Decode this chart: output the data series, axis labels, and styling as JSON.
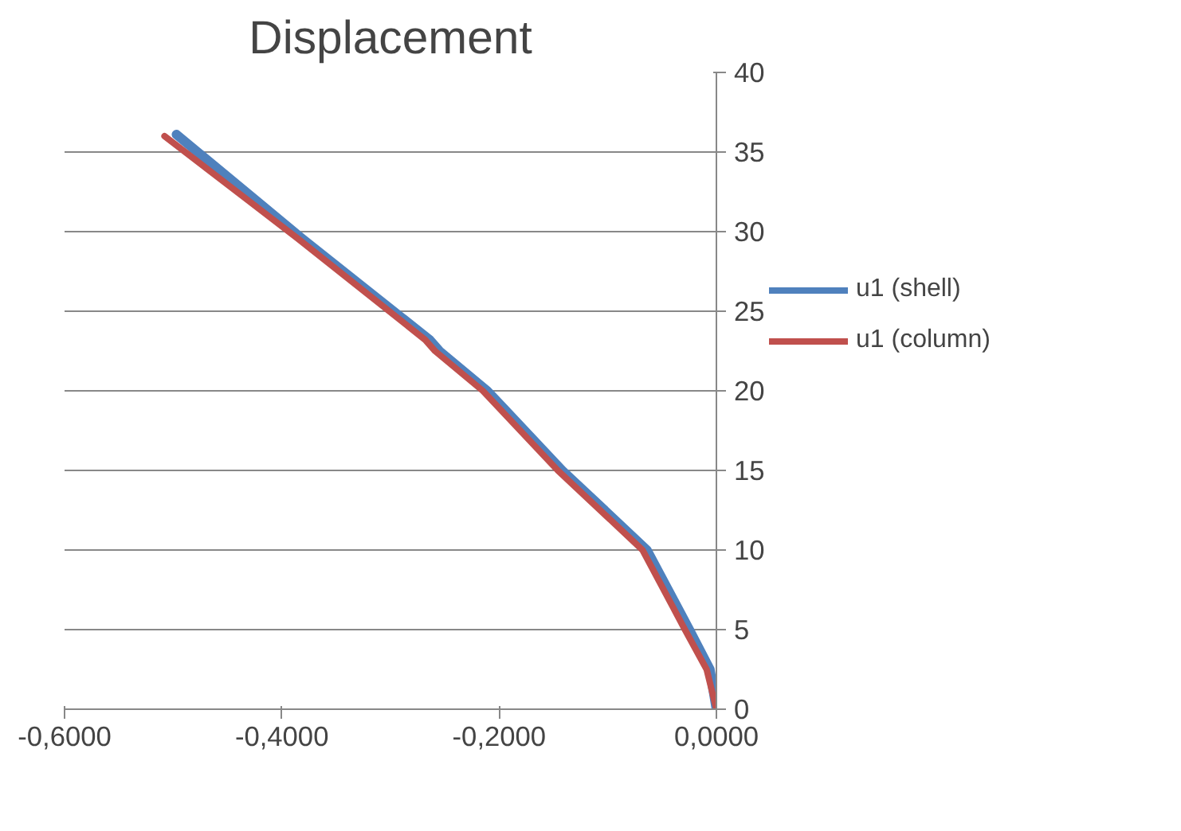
{
  "chart_data": {
    "type": "line",
    "title": "Displacement",
    "series": [
      {
        "name": "u1 (shell)",
        "color": "#4f81bd",
        "x": [
          -0.497,
          -0.382,
          -0.264,
          -0.255,
          -0.211,
          -0.142,
          -0.064,
          -0.025,
          -0.006,
          0.0
        ],
        "values": [
          36.1,
          29.6,
          23.2,
          22.5,
          20,
          15,
          10,
          5,
          2.5,
          0
        ]
      },
      {
        "name": "u1 (column)",
        "color": "#c0504d",
        "x": [
          -0.508,
          -0.386,
          -0.268,
          -0.259,
          -0.215,
          -0.146,
          -0.068,
          -0.029,
          -0.009,
          0.0
        ],
        "values": [
          36.0,
          29.6,
          23.2,
          22.5,
          20,
          15,
          10,
          5,
          2.5,
          0
        ]
      }
    ],
    "xlim": [
      -0.6,
      0.0
    ],
    "ylim": [
      0,
      40
    ],
    "xticks": [
      {
        "value": -0.6,
        "label": "-0,6000"
      },
      {
        "value": -0.4,
        "label": "-0,4000"
      },
      {
        "value": -0.2,
        "label": "-0,2000"
      },
      {
        "value": 0.0,
        "label": "0,0000"
      }
    ],
    "yticks": [
      0,
      5,
      10,
      15,
      20,
      25,
      30,
      35,
      40
    ],
    "grid": "y",
    "legend": "right",
    "marker": "none",
    "line_style": "solid"
  }
}
